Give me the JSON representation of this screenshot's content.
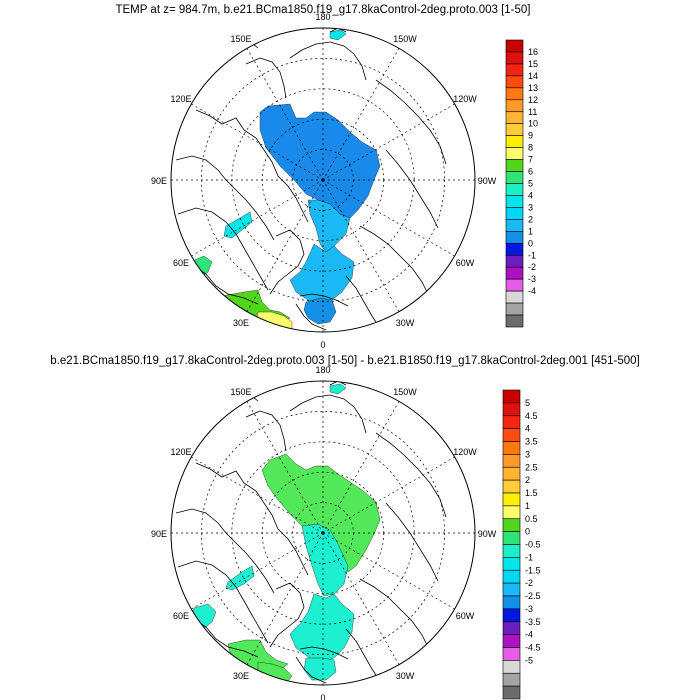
{
  "chart_data": [
    {
      "type": "heatmap",
      "projection": "north polar stereographic",
      "title": "TEMP at z= 984.7m, b.e21.BCma1850.f19_g17.8kaControl-2deg.proto.003 [1-50]",
      "lon_labels": [
        {
          "lon": 180,
          "text": "180"
        },
        {
          "lon": 150,
          "text": "150E"
        },
        {
          "lon": 120,
          "text": "120E"
        },
        {
          "lon": 90,
          "text": "90E"
        },
        {
          "lon": 60,
          "text": "60E"
        },
        {
          "lon": 30,
          "text": "30E"
        },
        {
          "lon": 0,
          "text": "0"
        },
        {
          "lon": -30,
          "text": "30W"
        },
        {
          "lon": -60,
          "text": "60W"
        },
        {
          "lon": -90,
          "text": "90W"
        },
        {
          "lon": -120,
          "text": "120W"
        },
        {
          "lon": -150,
          "text": "150W"
        }
      ],
      "colorbar_labels": [
        "16",
        "15",
        "14",
        "13",
        "12",
        "11",
        "10",
        "9",
        "8",
        "7",
        "6",
        "5",
        "4",
        "3",
        "2",
        "1",
        "0",
        "-1",
        "-2",
        "-3",
        "-4"
      ],
      "colorbar_colors": [
        "#c80000",
        "#e01010",
        "#f42414",
        "#ff4a10",
        "#ff7810",
        "#ff9a28",
        "#ffb432",
        "#ffcc3a",
        "#ffee00",
        "#fcfc6c",
        "#52d61c",
        "#2ee478",
        "#1cf0c6",
        "#00e6ea",
        "#00d6f6",
        "#1ab8f4",
        "#1490e6",
        "#0018e2",
        "#6a1ec0",
        "#ae10c4",
        "#e45ce8",
        "#d8d8d8",
        "#a4a4a4",
        "#6c6c6c"
      ],
      "regions": [
        {
          "name": "central-arctic",
          "color": "#1a8aea"
        },
        {
          "name": "fram-strait",
          "color": "#1ab8f4"
        },
        {
          "name": "norwegian-sea",
          "color": "#1ab8f4"
        },
        {
          "name": "barents-patch",
          "color": "#1490e6"
        },
        {
          "name": "baffin-patch",
          "color": "#00e6ea"
        },
        {
          "name": "labrador-patch",
          "color": "#2ee478"
        },
        {
          "name": "north-atlantic-green",
          "color": "#52d61c"
        },
        {
          "name": "north-atlantic-yellow",
          "color": "#fcfc6c"
        },
        {
          "name": "bering-patch",
          "color": "#00e6ea"
        }
      ]
    },
    {
      "type": "heatmap",
      "projection": "north polar stereographic",
      "title": "b.e21.BCma1850.f19_g17.8kaControl-2deg.proto.003 [1-50] - b.e21.B1850.f19_g17.8kaControl-2deg.001 [451-500]",
      "lon_labels": [
        {
          "lon": 180,
          "text": "180"
        },
        {
          "lon": 150,
          "text": "150E"
        },
        {
          "lon": 120,
          "text": "120E"
        },
        {
          "lon": 90,
          "text": "90E"
        },
        {
          "lon": 60,
          "text": "60E"
        },
        {
          "lon": 30,
          "text": "30E"
        },
        {
          "lon": 0,
          "text": "0"
        },
        {
          "lon": -30,
          "text": "30W"
        },
        {
          "lon": -60,
          "text": "60W"
        },
        {
          "lon": -90,
          "text": "90W"
        },
        {
          "lon": -120,
          "text": "120W"
        },
        {
          "lon": -150,
          "text": "150W"
        }
      ],
      "colorbar_labels": [
        "5",
        "4.5",
        "4",
        "3.5",
        "3",
        "2.5",
        "2",
        "1.5",
        "1",
        "0.5",
        "0",
        "-0.5",
        "-1",
        "-1.5",
        "-2",
        "-2.5",
        "-3",
        "-3.5",
        "-4",
        "-4.5",
        "-5"
      ],
      "colorbar_colors": [
        "#c80000",
        "#e01010",
        "#f42414",
        "#ff4a10",
        "#ff7810",
        "#ff9a28",
        "#ffb432",
        "#ffcc3a",
        "#ffee00",
        "#fcfc6c",
        "#52d61c",
        "#2ee478",
        "#1cf0c6",
        "#00e6ea",
        "#00d6f6",
        "#1ab8f4",
        "#1490e6",
        "#0018e2",
        "#6a1ec0",
        "#ae10c4",
        "#e45ce8",
        "#d8d8d8",
        "#a4a4a4",
        "#6c6c6c"
      ],
      "regions": [
        {
          "name": "central-arctic",
          "color": "#52e85a"
        },
        {
          "name": "fram-strait",
          "color": "#1cf0d0"
        },
        {
          "name": "norwegian-sea",
          "color": "#1cf0d0"
        },
        {
          "name": "barents-patch",
          "color": "#1cf0d0"
        },
        {
          "name": "baffin-patch",
          "color": "#1cf0d0"
        },
        {
          "name": "labrador-patch",
          "color": "#1cf0d0"
        },
        {
          "name": "north-atlantic-green",
          "color": "#52e85a"
        },
        {
          "name": "north-atlantic-yellow",
          "color": "#52e85a"
        },
        {
          "name": "bering-patch",
          "color": "#1cf0d0"
        }
      ]
    }
  ]
}
